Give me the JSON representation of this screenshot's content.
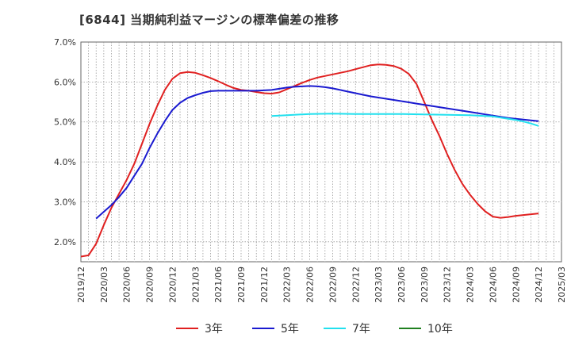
{
  "chart_data": {
    "type": "line",
    "title": "[6844]  当期純利益マージンの標準偏差の推移",
    "ylim": [
      1.5,
      7.0
    ],
    "y_ticks": [
      2.0,
      3.0,
      4.0,
      5.0,
      6.0,
      7.0
    ],
    "y_tick_labels": [
      "2.0%",
      "3.0%",
      "4.0%",
      "5.0%",
      "6.0%",
      "7.0%"
    ],
    "x_tick_labels": [
      "2019/12",
      "2020/03",
      "2020/06",
      "2020/09",
      "2020/12",
      "2021/03",
      "2021/06",
      "2021/09",
      "2021/12",
      "2022/03",
      "2022/06",
      "2022/09",
      "2022/12",
      "2023/03",
      "2023/06",
      "2023/09",
      "2023/12",
      "2024/03",
      "2024/06",
      "2024/09",
      "2024/12",
      "2025/03"
    ],
    "grid": true,
    "legend_position": "bottom",
    "series": [
      {
        "name": "3年",
        "color": "#e02020",
        "points": [
          [
            "2019-12",
            1.63
          ],
          [
            "2020-01",
            1.66
          ],
          [
            "2020-02",
            1.95
          ],
          [
            "2020-03",
            2.42
          ],
          [
            "2020-04",
            2.85
          ],
          [
            "2020-05",
            3.2
          ],
          [
            "2020-06",
            3.55
          ],
          [
            "2020-07",
            3.95
          ],
          [
            "2020-08",
            4.45
          ],
          [
            "2020-09",
            4.95
          ],
          [
            "2020-10",
            5.4
          ],
          [
            "2020-11",
            5.8
          ],
          [
            "2020-12",
            6.08
          ],
          [
            "2021-01",
            6.22
          ],
          [
            "2021-02",
            6.25
          ],
          [
            "2021-03",
            6.23
          ],
          [
            "2021-04",
            6.17
          ],
          [
            "2021-05",
            6.1
          ],
          [
            "2021-06",
            6.02
          ],
          [
            "2021-07",
            5.93
          ],
          [
            "2021-08",
            5.85
          ],
          [
            "2021-09",
            5.8
          ],
          [
            "2021-10",
            5.78
          ],
          [
            "2021-11",
            5.75
          ],
          [
            "2021-12",
            5.72
          ],
          [
            "2022-01",
            5.71
          ],
          [
            "2022-02",
            5.74
          ],
          [
            "2022-03",
            5.82
          ],
          [
            "2022-04",
            5.9
          ],
          [
            "2022-05",
            5.98
          ],
          [
            "2022-06",
            6.05
          ],
          [
            "2022-07",
            6.11
          ],
          [
            "2022-08",
            6.15
          ],
          [
            "2022-09",
            6.19
          ],
          [
            "2022-10",
            6.23
          ],
          [
            "2022-11",
            6.27
          ],
          [
            "2022-12",
            6.32
          ],
          [
            "2023-01",
            6.37
          ],
          [
            "2023-02",
            6.42
          ],
          [
            "2023-03",
            6.44
          ],
          [
            "2023-04",
            6.43
          ],
          [
            "2023-05",
            6.4
          ],
          [
            "2023-06",
            6.33
          ],
          [
            "2023-07",
            6.2
          ],
          [
            "2023-08",
            5.95
          ],
          [
            "2023-09",
            5.5
          ],
          [
            "2023-10",
            5.05
          ],
          [
            "2023-11",
            4.65
          ],
          [
            "2023-12",
            4.2
          ],
          [
            "2024-01",
            3.8
          ],
          [
            "2024-02",
            3.45
          ],
          [
            "2024-03",
            3.18
          ],
          [
            "2024-04",
            2.95
          ],
          [
            "2024-05",
            2.76
          ],
          [
            "2024-06",
            2.63
          ],
          [
            "2024-07",
            2.6
          ],
          [
            "2024-08",
            2.62
          ],
          [
            "2024-09",
            2.65
          ],
          [
            "2024-10",
            2.67
          ],
          [
            "2024-11",
            2.69
          ],
          [
            "2024-12",
            2.71
          ]
        ]
      },
      {
        "name": "5年",
        "color": "#1a1ad0",
        "points": [
          [
            "2020-02",
            2.58
          ],
          [
            "2020-03",
            2.75
          ],
          [
            "2020-04",
            2.92
          ],
          [
            "2020-05",
            3.12
          ],
          [
            "2020-06",
            3.35
          ],
          [
            "2020-07",
            3.65
          ],
          [
            "2020-08",
            3.95
          ],
          [
            "2020-09",
            4.35
          ],
          [
            "2020-10",
            4.7
          ],
          [
            "2020-11",
            5.02
          ],
          [
            "2020-12",
            5.3
          ],
          [
            "2021-01",
            5.48
          ],
          [
            "2021-02",
            5.6
          ],
          [
            "2021-03",
            5.67
          ],
          [
            "2021-04",
            5.73
          ],
          [
            "2021-05",
            5.77
          ],
          [
            "2021-06",
            5.78
          ],
          [
            "2021-07",
            5.78
          ],
          [
            "2021-08",
            5.78
          ],
          [
            "2021-09",
            5.78
          ],
          [
            "2021-10",
            5.78
          ],
          [
            "2021-11",
            5.78
          ],
          [
            "2021-12",
            5.79
          ],
          [
            "2022-01",
            5.8
          ],
          [
            "2022-02",
            5.83
          ],
          [
            "2022-03",
            5.86
          ],
          [
            "2022-04",
            5.88
          ],
          [
            "2022-05",
            5.89
          ],
          [
            "2022-06",
            5.9
          ],
          [
            "2022-07",
            5.89
          ],
          [
            "2022-08",
            5.87
          ],
          [
            "2022-09",
            5.84
          ],
          [
            "2022-10",
            5.8
          ],
          [
            "2022-11",
            5.76
          ],
          [
            "2022-12",
            5.72
          ],
          [
            "2023-01",
            5.68
          ],
          [
            "2023-02",
            5.64
          ],
          [
            "2023-03",
            5.61
          ],
          [
            "2023-04",
            5.58
          ],
          [
            "2023-05",
            5.55
          ],
          [
            "2023-06",
            5.52
          ],
          [
            "2023-07",
            5.49
          ],
          [
            "2023-08",
            5.46
          ],
          [
            "2023-09",
            5.43
          ],
          [
            "2023-10",
            5.4
          ],
          [
            "2023-11",
            5.37
          ],
          [
            "2023-12",
            5.34
          ],
          [
            "2024-01",
            5.31
          ],
          [
            "2024-02",
            5.28
          ],
          [
            "2024-03",
            5.25
          ],
          [
            "2024-04",
            5.22
          ],
          [
            "2024-05",
            5.19
          ],
          [
            "2024-06",
            5.16
          ],
          [
            "2024-07",
            5.13
          ],
          [
            "2024-08",
            5.1
          ],
          [
            "2024-09",
            5.08
          ],
          [
            "2024-10",
            5.06
          ],
          [
            "2024-11",
            5.04
          ],
          [
            "2024-12",
            5.02
          ]
        ]
      },
      {
        "name": "7年",
        "color": "#22e0ee",
        "points": [
          [
            "2022-01",
            5.15
          ],
          [
            "2022-03",
            5.17
          ],
          [
            "2022-06",
            5.2
          ],
          [
            "2022-09",
            5.21
          ],
          [
            "2022-12",
            5.2
          ],
          [
            "2023-03",
            5.2
          ],
          [
            "2023-06",
            5.2
          ],
          [
            "2023-09",
            5.19
          ],
          [
            "2023-12",
            5.18
          ],
          [
            "2024-03",
            5.17
          ],
          [
            "2024-06",
            5.14
          ],
          [
            "2024-09",
            5.05
          ],
          [
            "2024-10",
            5.01
          ],
          [
            "2024-11",
            4.96
          ],
          [
            "2024-12",
            4.9
          ]
        ]
      },
      {
        "name": "10年",
        "color": "#208020",
        "points": []
      }
    ]
  }
}
